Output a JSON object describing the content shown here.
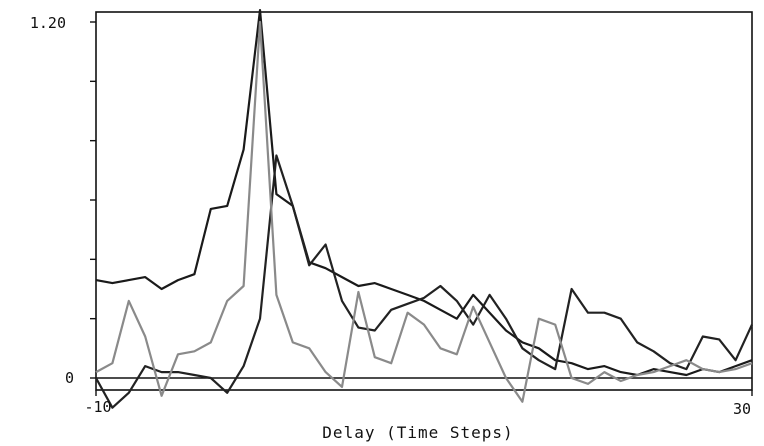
{
  "chart_data": {
    "type": "line",
    "xlabel": "Delay (Time Steps)",
    "ylabel": "",
    "xlim": [
      -10,
      30
    ],
    "ylim": [
      0,
      1.2
    ],
    "x_tick_labels": [
      "-10",
      "30"
    ],
    "y_tick_labels": [
      "0",
      "1.20"
    ],
    "y_tick_values": [
      0,
      0.2,
      0.4,
      0.6,
      0.8,
      1.0,
      1.2
    ],
    "grid": false,
    "series": [
      {
        "color": "#1a1a1a",
        "x": [
          -10,
          -9,
          -8,
          -7,
          -6,
          -5,
          -4,
          -3,
          -2,
          -1,
          0,
          1,
          2,
          3,
          4,
          5,
          6,
          7,
          8,
          9,
          10,
          11,
          12,
          13,
          14,
          15,
          16,
          17,
          18,
          19,
          20,
          21,
          22,
          23,
          24,
          25,
          26,
          27,
          28,
          29,
          30
        ],
        "values": [
          0.33,
          0.32,
          0.33,
          0.34,
          0.3,
          0.33,
          0.35,
          0.57,
          0.58,
          0.77,
          1.24,
          0.62,
          0.58,
          0.39,
          0.37,
          0.34,
          0.31,
          0.32,
          0.3,
          0.28,
          0.26,
          0.23,
          0.2,
          0.28,
          0.22,
          0.16,
          0.12,
          0.1,
          0.06,
          0.05,
          0.03,
          0.04,
          0.02,
          0.01,
          0.03,
          0.02,
          0.01,
          0.03,
          0.02,
          0.04,
          0.06
        ]
      },
      {
        "color": "#222222",
        "x": [
          -10,
          -9,
          -8,
          -7,
          -6,
          -5,
          -4,
          -3,
          -2,
          -1,
          0,
          1,
          2,
          3,
          4,
          5,
          6,
          7,
          8,
          9,
          10,
          11,
          12,
          13,
          14,
          15,
          16,
          17,
          18,
          19,
          20,
          21,
          22,
          23,
          24,
          25,
          26,
          27,
          28,
          29,
          30
        ],
        "values": [
          0.0,
          -0.1,
          -0.05,
          0.04,
          0.02,
          0.02,
          0.01,
          0.0,
          -0.05,
          0.04,
          0.2,
          0.75,
          0.58,
          0.38,
          0.45,
          0.26,
          0.17,
          0.16,
          0.23,
          0.25,
          0.27,
          0.31,
          0.26,
          0.18,
          0.28,
          0.2,
          0.1,
          0.06,
          0.03,
          0.3,
          0.22,
          0.22,
          0.2,
          0.12,
          0.09,
          0.05,
          0.03,
          0.14,
          0.13,
          0.06,
          0.18
        ]
      },
      {
        "color": "#8a8a8a",
        "x": [
          -10,
          -9,
          -8,
          -7,
          -6,
          -5,
          -4,
          -3,
          -2,
          -1,
          0,
          1,
          2,
          3,
          4,
          5,
          6,
          7,
          8,
          9,
          10,
          11,
          12,
          13,
          14,
          15,
          16,
          17,
          18,
          19,
          20,
          21,
          22,
          23,
          24,
          25,
          26,
          27,
          28,
          29,
          30
        ],
        "values": [
          0.02,
          0.05,
          0.26,
          0.14,
          -0.06,
          0.08,
          0.09,
          0.12,
          0.26,
          0.31,
          1.2,
          0.28,
          0.12,
          0.1,
          0.02,
          -0.03,
          0.29,
          0.07,
          0.05,
          0.22,
          0.18,
          0.1,
          0.08,
          0.24,
          0.12,
          0.0,
          -0.08,
          0.2,
          0.18,
          0.0,
          -0.02,
          0.02,
          -0.01,
          0.01,
          0.02,
          0.04,
          0.06,
          0.03,
          0.02,
          0.03,
          0.05
        ]
      }
    ]
  }
}
